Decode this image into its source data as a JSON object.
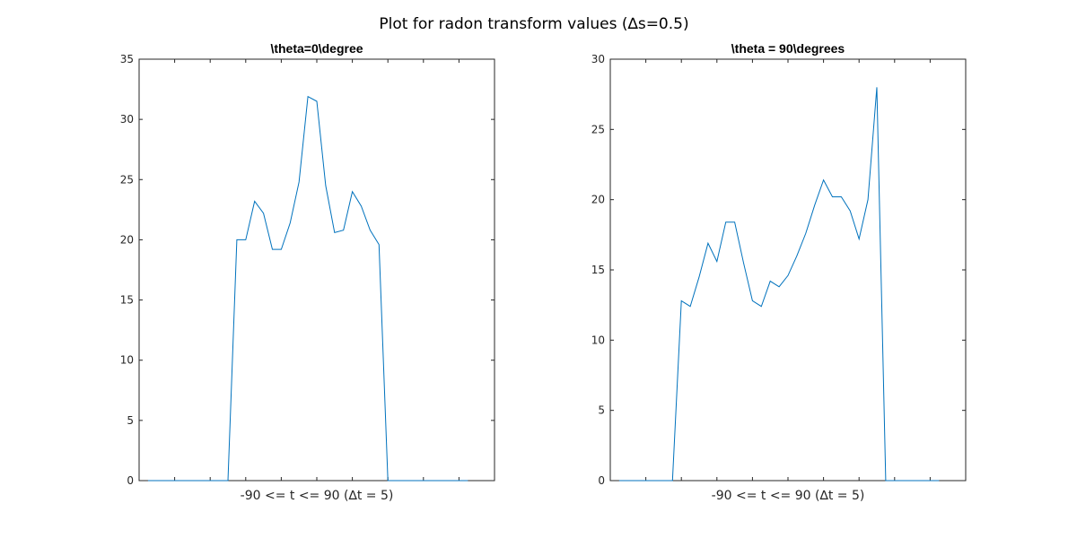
{
  "figure_title": "Plot for radon transform values (∆s=0.5)",
  "colors": {
    "series": "#0072BD",
    "axes": "#262626"
  },
  "chart_data": [
    {
      "type": "line",
      "title": "\\theta=0\\degree",
      "xlabel": "-90 <= t <= 90 (∆t = 5)",
      "ylabel": "",
      "xlim": [
        -100,
        100
      ],
      "ylim": [
        0,
        35
      ],
      "yticks": [
        0,
        5,
        10,
        15,
        20,
        25,
        30,
        35
      ],
      "xticks": [
        -80,
        -60,
        -40,
        -20,
        0,
        20,
        40,
        60,
        80
      ],
      "x_tick_labels_shown": false,
      "grid": false,
      "x": [
        -95,
        -90,
        -85,
        -80,
        -75,
        -70,
        -65,
        -60,
        -55,
        -50,
        -45,
        -40,
        -35,
        -30,
        -25,
        -20,
        -15,
        -10,
        -5,
        0,
        5,
        10,
        15,
        20,
        25,
        30,
        35,
        40,
        45,
        50,
        55,
        60,
        65,
        70,
        75,
        80,
        85
      ],
      "y": [
        0,
        0,
        0,
        0,
        0,
        0,
        0,
        0,
        0,
        0,
        20,
        20,
        23.2,
        22.2,
        19.2,
        19.2,
        21.4,
        24.8,
        31.9,
        31.5,
        24.5,
        20.6,
        20.8,
        24,
        22.8,
        20.8,
        19.6,
        0,
        0,
        0,
        0,
        0,
        0,
        0,
        0,
        0,
        0
      ]
    },
    {
      "type": "line",
      "title": "\\theta = 90\\degrees",
      "xlabel": "-90 <= t <= 90 (∆t = 5)",
      "ylabel": "",
      "xlim": [
        -100,
        100
      ],
      "ylim": [
        0,
        30
      ],
      "yticks": [
        0,
        5,
        10,
        15,
        20,
        25,
        30
      ],
      "xticks": [
        -80,
        -60,
        -40,
        -20,
        0,
        20,
        40,
        60,
        80
      ],
      "x_tick_labels_shown": false,
      "grid": false,
      "x": [
        -95,
        -90,
        -85,
        -80,
        -75,
        -70,
        -65,
        -60,
        -55,
        -50,
        -45,
        -40,
        -35,
        -30,
        -25,
        -20,
        -15,
        -10,
        -5,
        0,
        5,
        10,
        15,
        20,
        25,
        30,
        35,
        40,
        45,
        50,
        55,
        60,
        65,
        70,
        75,
        80,
        85
      ],
      "y": [
        0,
        0,
        0,
        0,
        0,
        0,
        0,
        12.8,
        12.4,
        14.5,
        16.9,
        15.6,
        18.4,
        18.4,
        15.5,
        12.8,
        12.4,
        14.2,
        13.8,
        14.6,
        16,
        17.6,
        19.6,
        21.4,
        20.2,
        20.2,
        19.2,
        17.2,
        20,
        28,
        0,
        0,
        0,
        0,
        0,
        0,
        0
      ]
    }
  ]
}
